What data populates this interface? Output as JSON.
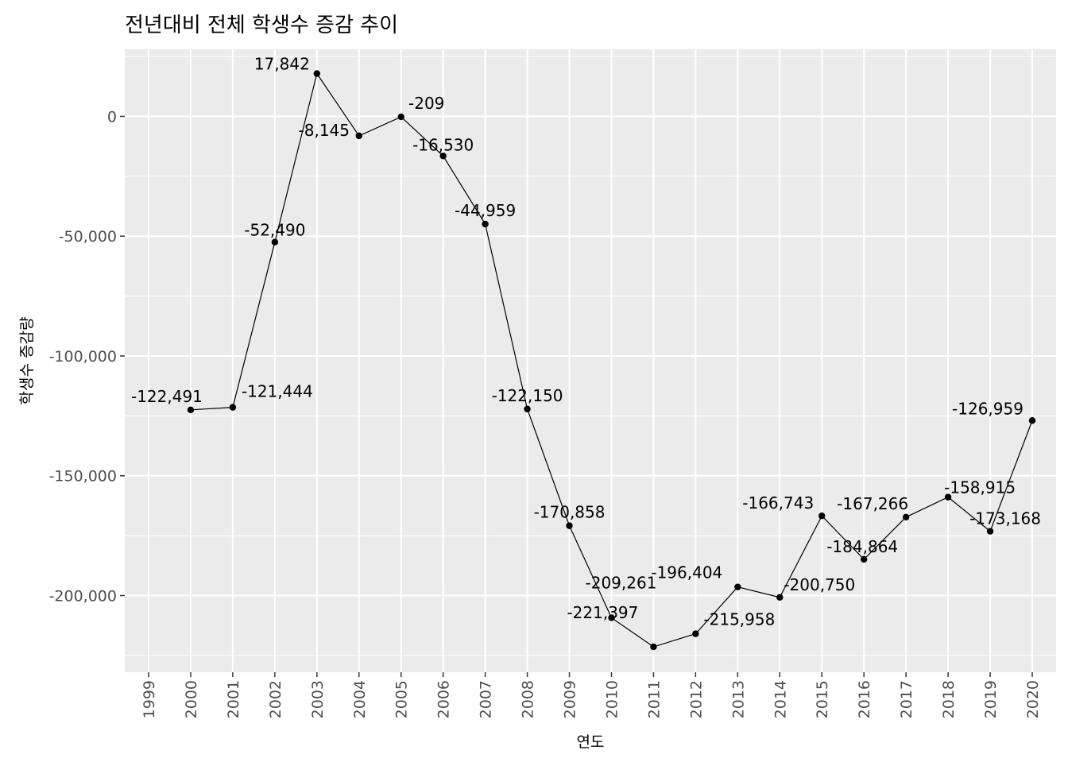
{
  "chart_data": {
    "type": "line",
    "title": "전년대비 전체 학생수 증감 추이",
    "xlabel": "연도",
    "ylabel": "학생수 증감량",
    "x_categories": [
      "1999",
      "2000",
      "2001",
      "2002",
      "2003",
      "2004",
      "2005",
      "2006",
      "2007",
      "2008",
      "2009",
      "2010",
      "2011",
      "2012",
      "2013",
      "2014",
      "2015",
      "2016",
      "2017",
      "2018",
      "2019",
      "2020"
    ],
    "y_ticks": [
      0,
      -50000,
      -100000,
      -150000,
      -200000
    ],
    "y_tick_labels": [
      "0",
      "-50,000",
      "-100,000",
      "-150,000",
      "-200,000"
    ],
    "ylim": [
      -232000,
      28000
    ],
    "grid": true,
    "series": [
      {
        "x": [
          "2000",
          "2001",
          "2002",
          "2003",
          "2004",
          "2005",
          "2006",
          "2007",
          "2008",
          "2009",
          "2010",
          "2011",
          "2012",
          "2013",
          "2014",
          "2015",
          "2016",
          "2017",
          "2018",
          "2019",
          "2020"
        ],
        "values": [
          -122491,
          -121444,
          -52490,
          17842,
          -8145,
          -209,
          -16530,
          -44959,
          -122150,
          -170858,
          -209261,
          -221397,
          -215958,
          -196404,
          -200750,
          -166743,
          -184864,
          -167266,
          -158915,
          -173168,
          -126959
        ],
        "labels": [
          "-122,491",
          "-121,444",
          "-52,490",
          "17,842",
          "-8,145",
          "-209",
          "-16,530",
          "-44,959",
          "-122,150",
          "-170,858",
          "-209,261",
          "-221,397",
          "-215,958",
          "-196,404",
          "-200,750",
          "-166,743",
          "-184,864",
          "-167,266",
          "-158,915",
          "-173,168",
          "-126,959"
        ]
      }
    ]
  }
}
